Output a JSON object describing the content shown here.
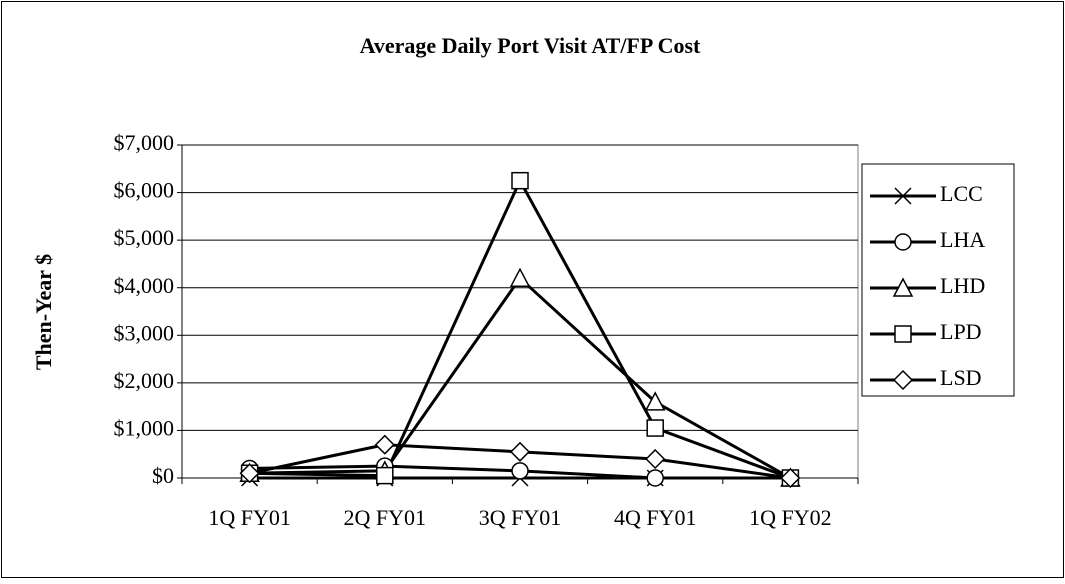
{
  "chart_data": {
    "type": "line",
    "title": "Average Daily Port Visit AT/FP Cost",
    "y_label": "Then-Year $",
    "categories": [
      "1Q FY01",
      "2Q FY01",
      "3Q FY01",
      "4Q FY01",
      "1Q FY02"
    ],
    "ylim": [
      0,
      7000
    ],
    "yticks": [
      {
        "value": 0,
        "label": "$0"
      },
      {
        "value": 1000,
        "label": "$1,000"
      },
      {
        "value": 2000,
        "label": "$2,000"
      },
      {
        "value": 3000,
        "label": "$3,000"
      },
      {
        "value": 4000,
        "label": "$4,000"
      },
      {
        "value": 5000,
        "label": "$5,000"
      },
      {
        "value": 6000,
        "label": "$6,000"
      },
      {
        "value": 7000,
        "label": "$7,000"
      }
    ],
    "grid": true,
    "legend": "right",
    "series": [
      {
        "name": "LCC",
        "color": "#000000",
        "marker": "x",
        "values": [
          0,
          0,
          0,
          0,
          0
        ]
      },
      {
        "name": "LHA",
        "color": "#000000",
        "marker": "circle",
        "values": [
          200,
          250,
          150,
          0,
          0
        ]
      },
      {
        "name": "LHD",
        "color": "#000000",
        "marker": "triangle",
        "values": [
          100,
          150,
          4200,
          1600,
          0
        ]
      },
      {
        "name": "LPD",
        "color": "#000000",
        "marker": "square",
        "values": [
          100,
          50,
          6250,
          1050,
          0
        ]
      },
      {
        "name": "LSD",
        "color": "#000000",
        "marker": "diamond",
        "values": [
          100,
          700,
          550,
          400,
          0
        ]
      }
    ]
  }
}
